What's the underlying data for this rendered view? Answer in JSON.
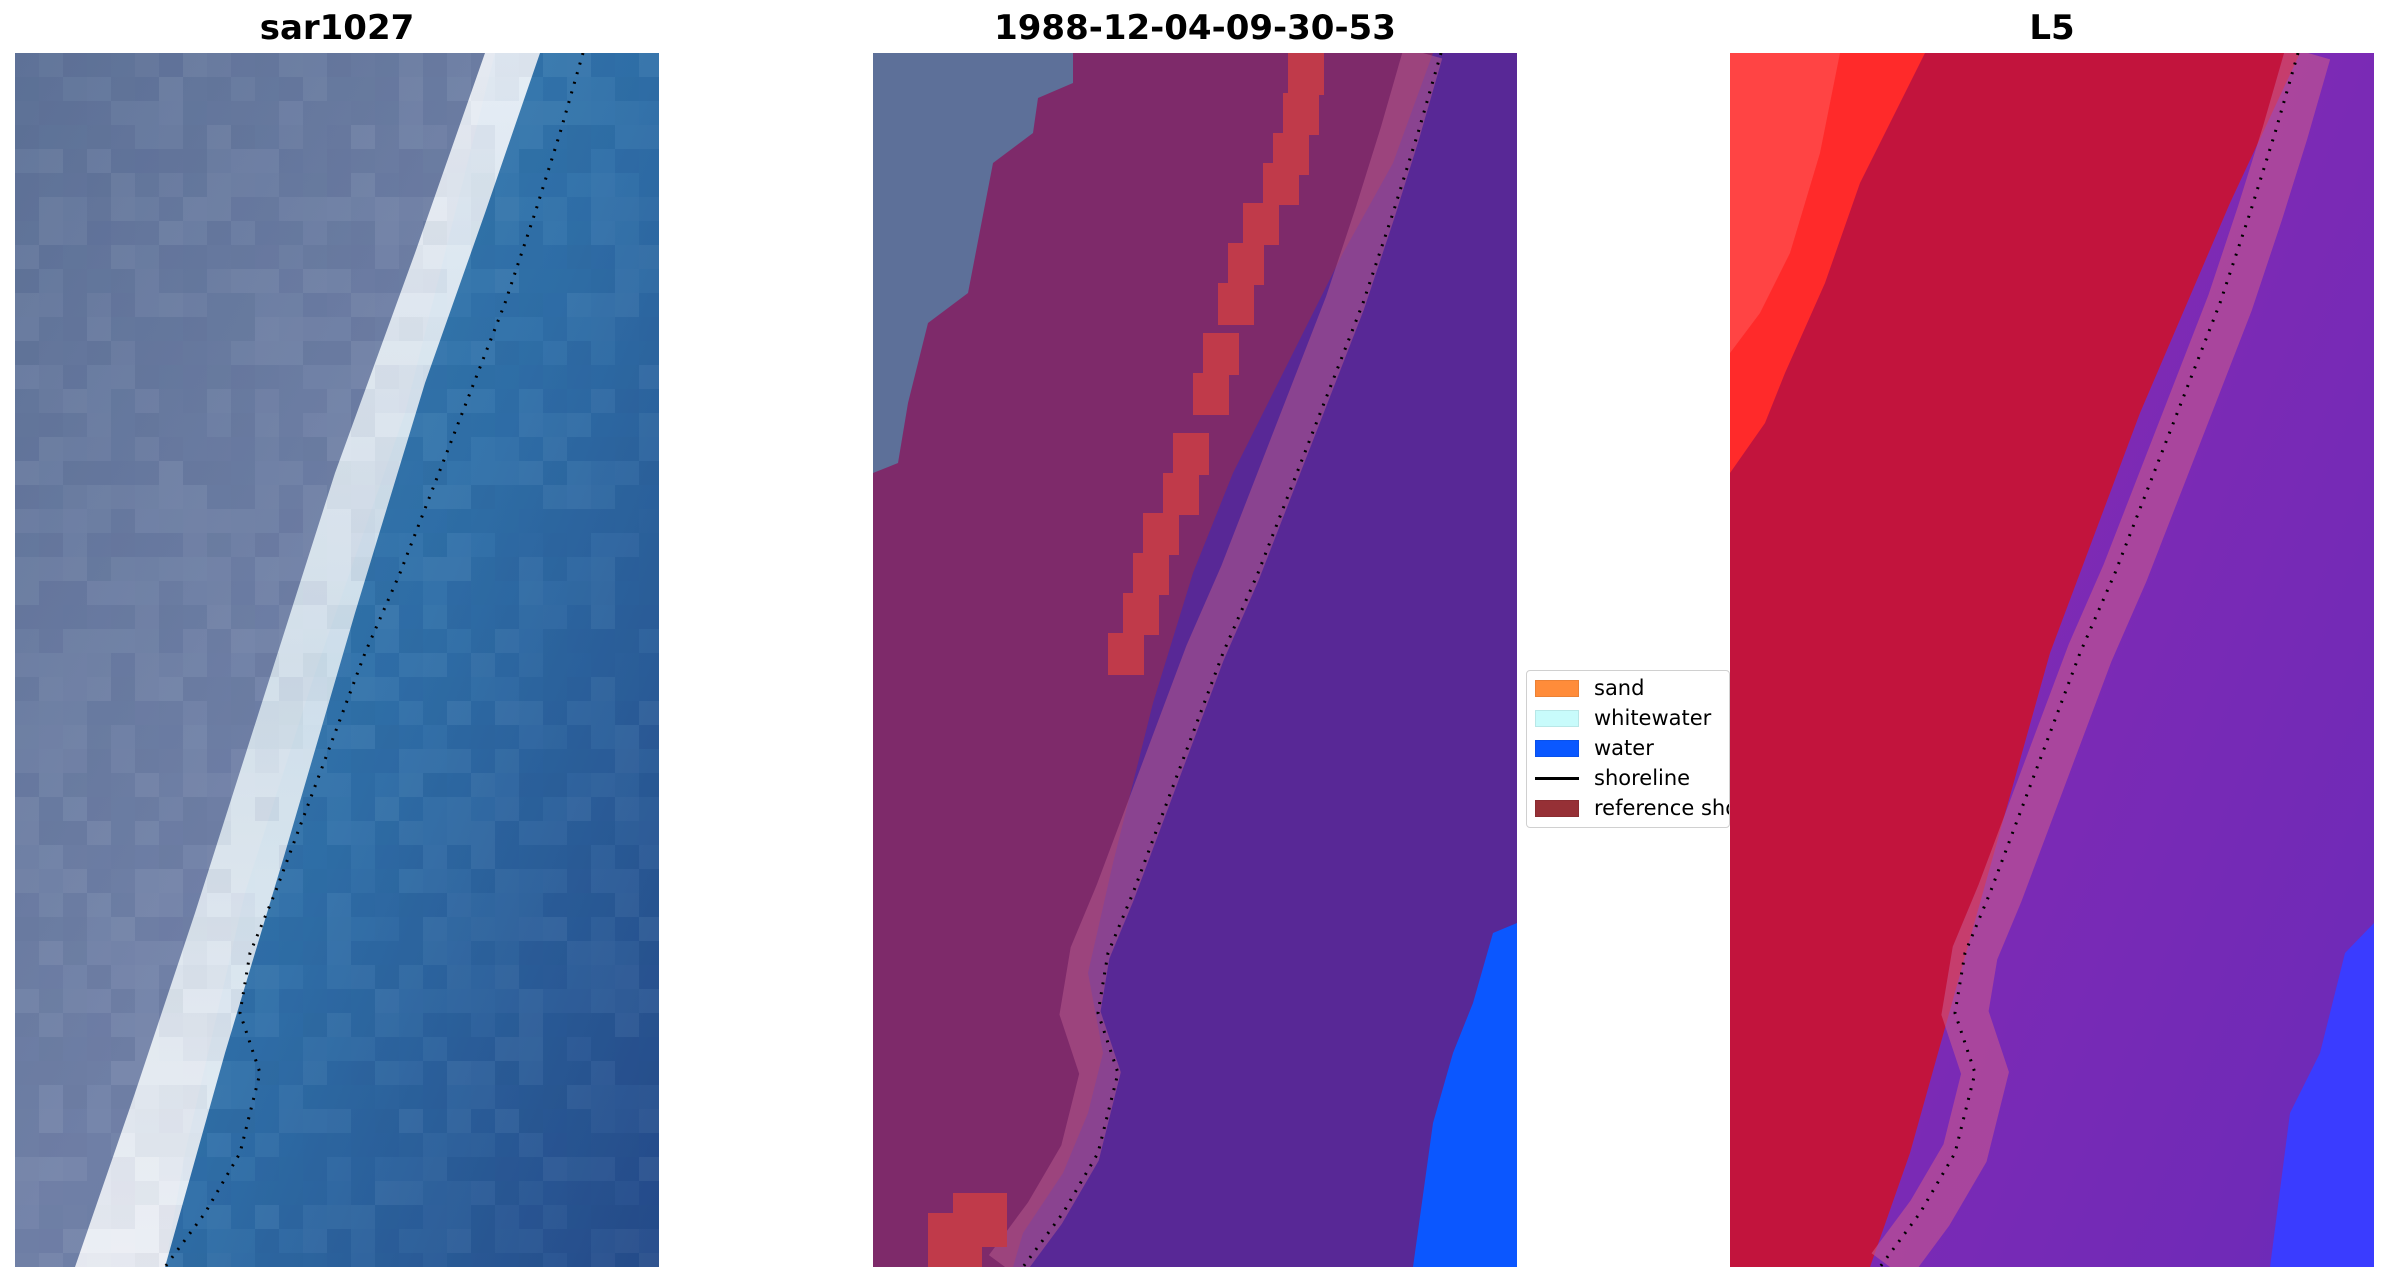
{
  "panels": [
    {
      "id": "rgb",
      "title": "sar1027"
    },
    {
      "id": "classified",
      "title": "1988-12-04-09-30-53"
    },
    {
      "id": "index",
      "title": "L5"
    }
  ],
  "legend": {
    "items": [
      {
        "label": "sand",
        "color": "#ff8c3a",
        "kind": "patch"
      },
      {
        "label": "whitewater",
        "color": "#c8fbfb",
        "kind": "patch"
      },
      {
        "label": "water",
        "color": "#0a58ff",
        "kind": "patch"
      },
      {
        "label": "shoreline",
        "color": "#000000",
        "kind": "line"
      },
      {
        "label": "reference shoreline",
        "color": "#963036",
        "kind": "patch"
      }
    ]
  },
  "colors": {
    "rgb_land": "#6a7ea4",
    "rgb_beach": "#e8eef6",
    "rgb_water": "#2f6fa8",
    "classified_land": "#7e2a6a",
    "classified_sand_band": "#b5414f",
    "classified_water": "#582896",
    "classified_open_water": "#0b57ff",
    "index_land": "#c2143d",
    "index_high": "#ff1010",
    "index_water": "#7a24b2",
    "index_open_water": "#3a3cff",
    "shoreline_dots": "#000000"
  }
}
